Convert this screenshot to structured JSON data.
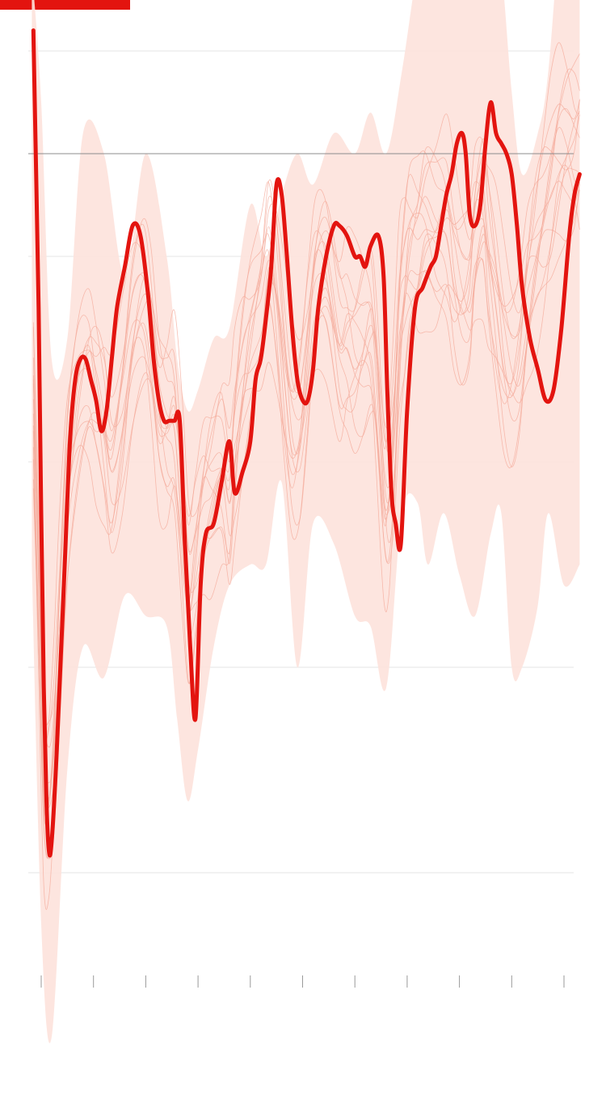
{
  "colors": {
    "accent": "#e3140f",
    "band": "#fde2dc",
    "thin_lines": "#f4a99a",
    "grid": "#e6e6e6",
    "reference": "#8c8c8c",
    "ticks": "#9a9a9a"
  },
  "chart_data": {
    "type": "line",
    "title": "",
    "xlabel": "",
    "ylabel": "",
    "xlim": [
      0,
      10.3
    ],
    "x_ticks": [
      0,
      1,
      2,
      3,
      4,
      5,
      6,
      7,
      8,
      9,
      10
    ],
    "x_tick_labels": [],
    "ylim": [
      -0.55,
      0.85
    ],
    "y_gridlines": [
      -0.4,
      -0.2,
      0,
      0.2,
      0.4
    ],
    "reference_line": 0.3,
    "grid": true,
    "legend": "none",
    "band": {
      "x": [
        -0.18,
        0.0,
        0.2,
        0.5,
        0.8,
        1.2,
        1.6,
        2.0,
        2.4,
        2.6,
        2.8,
        3.0,
        3.3,
        3.6,
        4.0,
        4.3,
        4.6,
        4.9,
        5.2,
        5.6,
        6.0,
        6.3,
        6.6,
        6.9,
        7.2,
        7.4,
        7.7,
        8.0,
        8.3,
        8.6,
        8.8,
        9.0,
        9.2,
        9.5,
        9.7,
        10.0,
        10.3
      ],
      "upper": [
        0.48,
        0.35,
        0.1,
        0.12,
        0.32,
        0.3,
        0.18,
        0.3,
        0.2,
        0.1,
        0.05,
        0.07,
        0.12,
        0.13,
        0.25,
        0.2,
        0.26,
        0.3,
        0.27,
        0.32,
        0.3,
        0.34,
        0.3,
        0.38,
        0.48,
        0.5,
        0.52,
        0.6,
        0.64,
        0.52,
        0.48,
        0.36,
        0.28,
        0.32,
        0.38,
        0.56,
        0.6
      ],
      "lower": [
        -0.1,
        -0.45,
        -0.56,
        -0.3,
        -0.18,
        -0.21,
        -0.13,
        -0.15,
        -0.16,
        -0.25,
        -0.33,
        -0.28,
        -0.18,
        -0.12,
        -0.1,
        -0.1,
        -0.02,
        -0.2,
        -0.06,
        -0.08,
        -0.15,
        -0.16,
        -0.22,
        -0.05,
        -0.04,
        -0.1,
        -0.05,
        -0.11,
        -0.15,
        -0.07,
        -0.05,
        -0.2,
        -0.2,
        -0.14,
        -0.05,
        -0.12,
        -0.1
      ]
    },
    "series": [
      {
        "x": [
          -0.15,
          -0.05,
          0.05,
          0.15,
          0.25,
          0.35,
          0.5,
          0.7,
          0.9,
          1.05,
          1.2,
          1.35,
          1.55,
          1.75,
          1.95,
          2.1,
          2.25,
          2.4,
          2.55,
          2.7,
          2.82,
          2.95,
          3.1,
          3.25,
          3.45,
          3.6,
          3.7,
          3.85,
          4.0,
          4.2,
          4.35,
          4.5,
          4.65,
          4.8,
          4.95,
          5.1,
          5.25,
          5.45,
          5.7,
          5.85,
          6.0,
          6.15,
          6.3,
          6.4,
          6.55,
          6.65,
          6.75,
          6.85,
          6.95,
          7.05,
          7.2,
          7.35,
          7.55,
          7.75,
          7.9,
          8.05,
          8.2,
          8.3,
          8.45,
          8.55,
          8.7,
          8.85,
          9.0,
          9.15,
          9.3,
          9.45,
          9.6,
          9.75,
          9.9,
          10.05,
          10.2,
          10.3
        ],
        "y": [
          0.06,
          -0.12,
          -0.3,
          -0.32,
          -0.27,
          -0.16,
          -0.02,
          0.06,
          0.09,
          0.07,
          0.04,
          0.0,
          0.05,
          0.13,
          0.16,
          0.13,
          0.06,
          0.04,
          0.04,
          -0.05,
          -0.12,
          -0.09,
          -0.04,
          -0.02,
          0.0,
          -0.03,
          0.02,
          0.08,
          0.12,
          0.16,
          0.21,
          0.17,
          0.09,
          0.03,
          0.04,
          0.11,
          0.18,
          0.19,
          0.12,
          0.12,
          0.11,
          0.12,
          0.13,
          0.09,
          -0.02,
          -0.03,
          0.03,
          0.13,
          0.18,
          0.21,
          0.22,
          0.24,
          0.23,
          0.23,
          0.19,
          0.17,
          0.18,
          0.23,
          0.25,
          0.21,
          0.16,
          0.11,
          0.09,
          0.11,
          0.17,
          0.21,
          0.24,
          0.27,
          0.3,
          0.31,
          0.31,
          0.32
        ],
        "amp": [
          1,
          1.9,
          1.6,
          0.8
        ]
      }
    ],
    "highlight": {
      "x": [
        -0.15,
        -0.05,
        0.0,
        0.05,
        0.1,
        0.15,
        0.2,
        0.28,
        0.35,
        0.45,
        0.55,
        0.65,
        0.75,
        0.85,
        0.95,
        1.05,
        1.15,
        1.25,
        1.35,
        1.45,
        1.6,
        1.75,
        1.9,
        2.05,
        2.15,
        2.25,
        2.35,
        2.45,
        2.55,
        2.65,
        2.75,
        2.85,
        2.95,
        3.05,
        3.15,
        3.3,
        3.45,
        3.6,
        3.7,
        3.85,
        4.0,
        4.1,
        4.2,
        4.3,
        4.4,
        4.5,
        4.6,
        4.7,
        4.8,
        4.9,
        5.0,
        5.1,
        5.2,
        5.3,
        5.45,
        5.6,
        5.7,
        5.85,
        6.0,
        6.1,
        6.2,
        6.3,
        6.45,
        6.55,
        6.62,
        6.7,
        6.78,
        6.88,
        7.0,
        7.15,
        7.3,
        7.45,
        7.55,
        7.65,
        7.75,
        7.85,
        7.95,
        8.05,
        8.12,
        8.2,
        8.3,
        8.4,
        8.5,
        8.6,
        8.7,
        8.8,
        8.9,
        9.0,
        9.1,
        9.2,
        9.35,
        9.5,
        9.65,
        9.8,
        9.95,
        10.1,
        10.2,
        10.3
      ],
      "y": [
        0.42,
        0.15,
        -0.05,
        -0.22,
        -0.33,
        -0.38,
        -0.37,
        -0.3,
        -0.22,
        -0.1,
        0.02,
        0.08,
        0.1,
        0.1,
        0.08,
        0.06,
        0.03,
        0.05,
        0.1,
        0.15,
        0.19,
        0.23,
        0.22,
        0.16,
        0.1,
        0.06,
        0.04,
        0.04,
        0.04,
        0.04,
        -0.08,
        -0.18,
        -0.25,
        -0.12,
        -0.07,
        -0.06,
        -0.02,
        0.02,
        -0.03,
        -0.01,
        0.02,
        0.08,
        0.1,
        0.14,
        0.19,
        0.27,
        0.26,
        0.2,
        0.13,
        0.08,
        0.06,
        0.06,
        0.09,
        0.15,
        0.2,
        0.23,
        0.23,
        0.22,
        0.2,
        0.2,
        0.19,
        0.21,
        0.22,
        0.18,
        0.07,
        -0.03,
        -0.06,
        -0.08,
        0.05,
        0.15,
        0.17,
        0.19,
        0.2,
        0.23,
        0.26,
        0.28,
        0.31,
        0.32,
        0.3,
        0.24,
        0.23,
        0.25,
        0.31,
        0.35,
        0.32,
        0.31,
        0.3,
        0.28,
        0.23,
        0.17,
        0.12,
        0.09,
        0.06,
        0.07,
        0.13,
        0.22,
        0.26,
        0.28
      ]
    }
  }
}
